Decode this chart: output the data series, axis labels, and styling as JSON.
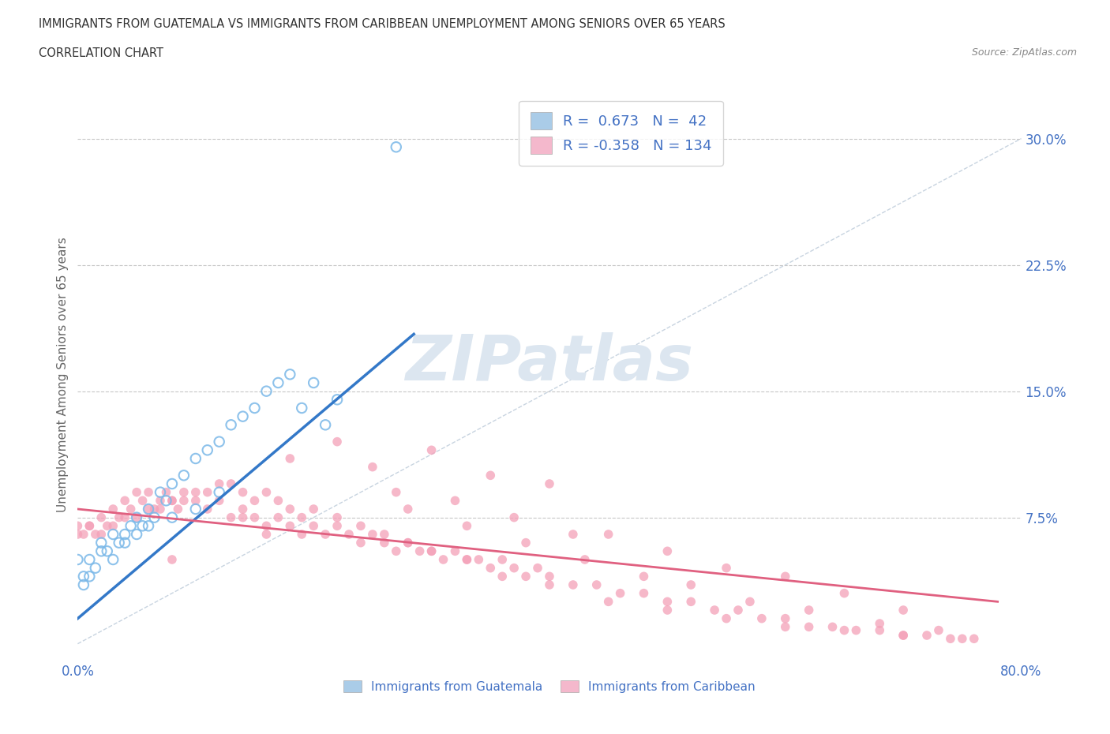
{
  "title_line1": "IMMIGRANTS FROM GUATEMALA VS IMMIGRANTS FROM CARIBBEAN UNEMPLOYMENT AMONG SENIORS OVER 65 YEARS",
  "title_line2": "CORRELATION CHART",
  "source_text": "Source: ZipAtlas.com",
  "ylabel": "Unemployment Among Seniors over 65 years",
  "xlim": [
    0.0,
    0.8
  ],
  "ylim": [
    -0.01,
    0.33
  ],
  "yticks_right": [
    0.075,
    0.15,
    0.225,
    0.3
  ],
  "ytick_labels_right": [
    "7.5%",
    "15.0%",
    "22.5%",
    "30.0%"
  ],
  "r_guatemala": 0.673,
  "n_guatemala": 42,
  "r_caribbean": -0.358,
  "n_caribbean": 134,
  "color_guatemala": "#7ab8e8",
  "color_caribbean": "#f4a0b8",
  "line_color_guatemala": "#3378c8",
  "line_color_caribbean": "#e06080",
  "ref_line_color": "#c8d4e0",
  "watermark_color": "#dce6f0",
  "background_color": "#ffffff",
  "label_color": "#4472c4",
  "grid_color": "#c8c8c8",
  "legend_color_guatemala": "#aacce8",
  "legend_color_caribbean": "#f4b8cc",
  "guatemala_x": [
    0.005,
    0.01,
    0.015,
    0.02,
    0.025,
    0.03,
    0.035,
    0.04,
    0.045,
    0.05,
    0.055,
    0.06,
    0.065,
    0.07,
    0.075,
    0.08,
    0.09,
    0.1,
    0.11,
    0.12,
    0.13,
    0.14,
    0.15,
    0.16,
    0.17,
    0.18,
    0.19,
    0.2,
    0.21,
    0.22,
    0.0,
    0.01,
    0.02,
    0.03,
    0.04,
    0.05,
    0.06,
    0.08,
    0.1,
    0.12,
    0.27,
    0.005
  ],
  "guatemala_y": [
    0.04,
    0.05,
    0.045,
    0.06,
    0.055,
    0.065,
    0.06,
    0.065,
    0.07,
    0.075,
    0.07,
    0.08,
    0.075,
    0.09,
    0.085,
    0.095,
    0.1,
    0.11,
    0.115,
    0.12,
    0.13,
    0.135,
    0.14,
    0.15,
    0.155,
    0.16,
    0.14,
    0.155,
    0.13,
    0.145,
    0.05,
    0.04,
    0.055,
    0.05,
    0.06,
    0.065,
    0.07,
    0.075,
    0.08,
    0.09,
    0.295,
    0.035
  ],
  "caribbean_x": [
    0.0,
    0.005,
    0.01,
    0.015,
    0.02,
    0.025,
    0.03,
    0.035,
    0.04,
    0.045,
    0.05,
    0.055,
    0.06,
    0.065,
    0.07,
    0.075,
    0.08,
    0.085,
    0.09,
    0.1,
    0.11,
    0.12,
    0.13,
    0.14,
    0.15,
    0.16,
    0.17,
    0.18,
    0.19,
    0.2,
    0.21,
    0.22,
    0.23,
    0.24,
    0.25,
    0.26,
    0.27,
    0.28,
    0.29,
    0.3,
    0.31,
    0.32,
    0.33,
    0.34,
    0.35,
    0.36,
    0.37,
    0.38,
    0.39,
    0.4,
    0.42,
    0.44,
    0.46,
    0.48,
    0.5,
    0.52,
    0.54,
    0.56,
    0.58,
    0.6,
    0.62,
    0.64,
    0.66,
    0.68,
    0.7,
    0.72,
    0.74,
    0.76,
    0.0,
    0.01,
    0.02,
    0.03,
    0.04,
    0.05,
    0.06,
    0.07,
    0.08,
    0.09,
    0.1,
    0.11,
    0.12,
    0.13,
    0.14,
    0.15,
    0.16,
    0.17,
    0.18,
    0.19,
    0.2,
    0.22,
    0.24,
    0.26,
    0.28,
    0.3,
    0.33,
    0.36,
    0.4,
    0.45,
    0.5,
    0.55,
    0.6,
    0.65,
    0.7,
    0.75,
    0.25,
    0.3,
    0.35,
    0.4,
    0.45,
    0.5,
    0.55,
    0.6,
    0.65,
    0.7,
    0.27,
    0.32,
    0.18,
    0.22,
    0.37,
    0.42,
    0.28,
    0.33,
    0.38,
    0.43,
    0.48,
    0.52,
    0.57,
    0.62,
    0.68,
    0.73,
    0.14,
    0.08,
    0.16
  ],
  "caribbean_y": [
    0.07,
    0.065,
    0.07,
    0.065,
    0.075,
    0.07,
    0.08,
    0.075,
    0.085,
    0.08,
    0.09,
    0.085,
    0.09,
    0.08,
    0.085,
    0.09,
    0.085,
    0.08,
    0.09,
    0.085,
    0.08,
    0.085,
    0.075,
    0.08,
    0.075,
    0.07,
    0.075,
    0.07,
    0.065,
    0.07,
    0.065,
    0.07,
    0.065,
    0.06,
    0.065,
    0.06,
    0.055,
    0.06,
    0.055,
    0.055,
    0.05,
    0.055,
    0.05,
    0.05,
    0.045,
    0.05,
    0.045,
    0.04,
    0.045,
    0.04,
    0.035,
    0.035,
    0.03,
    0.03,
    0.025,
    0.025,
    0.02,
    0.02,
    0.015,
    0.015,
    0.01,
    0.01,
    0.008,
    0.008,
    0.005,
    0.005,
    0.003,
    0.003,
    0.065,
    0.07,
    0.065,
    0.07,
    0.075,
    0.075,
    0.08,
    0.08,
    0.085,
    0.085,
    0.09,
    0.09,
    0.095,
    0.095,
    0.09,
    0.085,
    0.09,
    0.085,
    0.08,
    0.075,
    0.08,
    0.075,
    0.07,
    0.065,
    0.06,
    0.055,
    0.05,
    0.04,
    0.035,
    0.025,
    0.02,
    0.015,
    0.01,
    0.008,
    0.005,
    0.003,
    0.105,
    0.115,
    0.1,
    0.095,
    0.065,
    0.055,
    0.045,
    0.04,
    0.03,
    0.02,
    0.09,
    0.085,
    0.11,
    0.12,
    0.075,
    0.065,
    0.08,
    0.07,
    0.06,
    0.05,
    0.04,
    0.035,
    0.025,
    0.02,
    0.012,
    0.008,
    0.075,
    0.05,
    0.065
  ]
}
